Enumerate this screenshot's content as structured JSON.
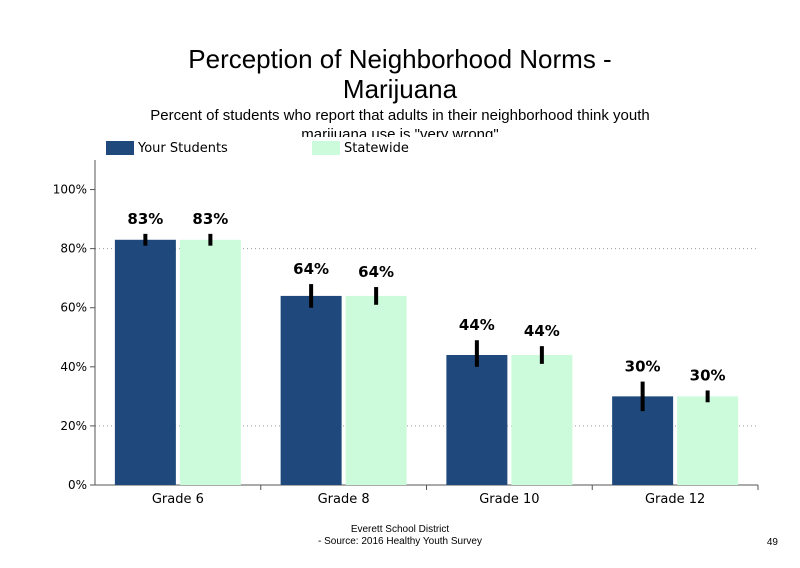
{
  "chart_data": {
    "type": "bar",
    "title": "Perception of Neighborhood Norms -\nMarijuana",
    "subtitle": "Percent of students who report that adults in their neighborhood think youth marijuana use is \"very wrong\"",
    "categories": [
      "Grade 6",
      "Grade 8",
      "Grade 10",
      "Grade 12"
    ],
    "series": [
      {
        "name": "Your Students",
        "color": "#1f497d",
        "values": [
          83,
          64,
          44,
          30
        ],
        "labels": [
          "83%",
          "64%",
          "44%",
          "30%"
        ],
        "error_low": [
          81,
          60,
          40,
          25
        ],
        "error_high": [
          85,
          68,
          49,
          35
        ]
      },
      {
        "name": "Statewide",
        "color": "#ccfbdc",
        "values": [
          83,
          64,
          44,
          30
        ],
        "labels": [
          "83%",
          "64%",
          "44%",
          "30%"
        ],
        "error_low": [
          81,
          61,
          41,
          28
        ],
        "error_high": [
          85,
          67,
          47,
          32
        ]
      }
    ],
    "y_ticks": [
      "0%",
      "20%",
      "40%",
      "60%",
      "80%",
      "100%"
    ],
    "ylim": [
      0,
      110
    ],
    "legend_position": "top-left",
    "grid": "dotted horizontal at 20% and 80%"
  },
  "footer": {
    "line1": "Everett School District",
    "line2": "- Source: 2016 Healthy  Youth Survey"
  },
  "page_number": "49"
}
